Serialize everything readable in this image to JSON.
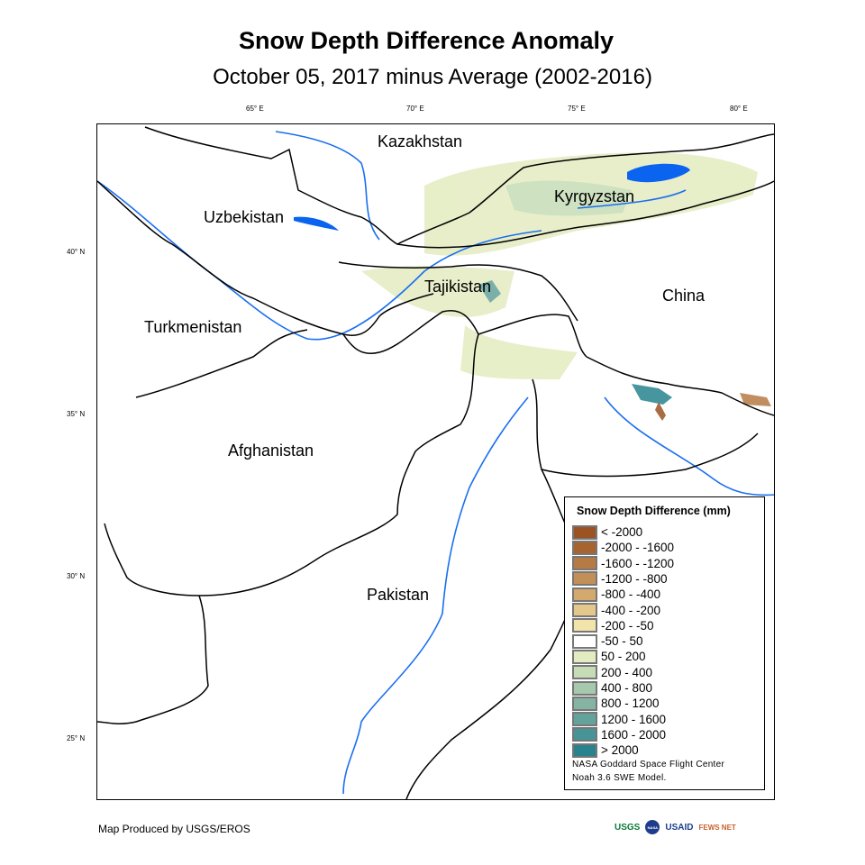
{
  "title": "Snow Depth Difference Anomaly",
  "subtitle": "October 05, 2017 minus Average (2002-2016)",
  "lon_ticks": [
    "65° E",
    "70° E",
    "75° E",
    "80° E"
  ],
  "lat_ticks": [
    "40° N",
    "35° N",
    "30° N",
    "25° N"
  ],
  "countries": [
    "Kazakhstan",
    "Kyrgyzstan",
    "Uzbekistan",
    "Tajikistan",
    "China",
    "Turkmenistan",
    "Afghanistan",
    "Pakistan"
  ],
  "legend": {
    "title": "Snow Depth Difference (mm)",
    "items": [
      {
        "label": "< -2000",
        "color": "#9c5324"
      },
      {
        "label": "-2000 - -1600",
        "color": "#a8642e"
      },
      {
        "label": "-1600 - -1200",
        "color": "#b67a44"
      },
      {
        "label": "-1200 - -800",
        "color": "#c38f58"
      },
      {
        "label": "-800 - -400",
        "color": "#d3a96e"
      },
      {
        "label": "-400 - -200",
        "color": "#e3c78b"
      },
      {
        "label": "-200 - -50",
        "color": "#f2e4aa"
      },
      {
        "label": "-50 - 50",
        "color": "#ffffff"
      },
      {
        "label": "50 - 200",
        "color": "#e3ecc0"
      },
      {
        "label": "200 - 400",
        "color": "#c6dcb6"
      },
      {
        "label": "400 - 800",
        "color": "#a6c9ae"
      },
      {
        "label": "800 - 1200",
        "color": "#85b4a3"
      },
      {
        "label": "1200 - 1600",
        "color": "#64a39c"
      },
      {
        "label": "1600 - 2000",
        "color": "#479497"
      },
      {
        "label": "> 2000",
        "color": "#28838e"
      }
    ],
    "credit_1": "NASA Goddard Space Flight Center",
    "credit_2": "Noah 3.6 SWE  Model."
  },
  "footer": "Map Produced by USGS/EROS",
  "logos": [
    "USGS",
    "NASA",
    "USAID",
    "FEWS NET"
  ]
}
